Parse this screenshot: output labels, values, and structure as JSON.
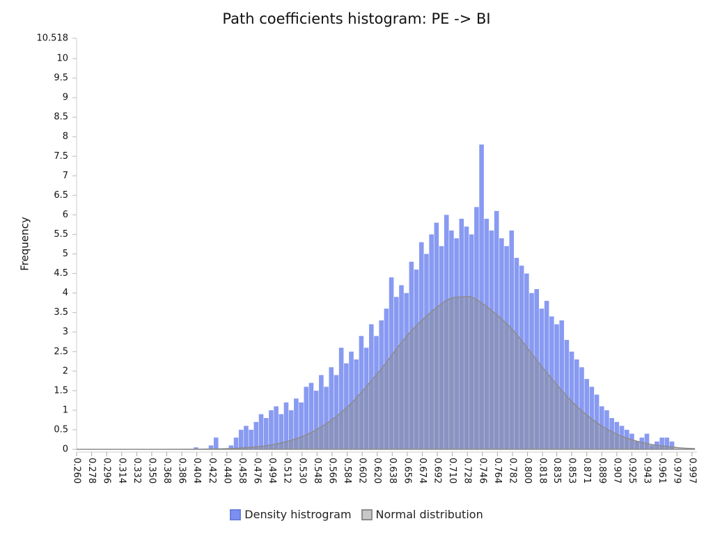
{
  "chart_data": {
    "type": "histogram",
    "title": "Path coefficients histogram: PE -> BI",
    "y_label": "Frequency",
    "name": "Density histrogram",
    "color": "#7b8ff0",
    "bins": [
      0.4,
      0.406,
      0.412,
      0.418,
      0.424,
      0.43,
      0.436,
      0.442,
      0.448,
      0.454,
      0.46,
      0.466,
      0.472,
      0.478,
      0.484,
      0.49,
      0.496,
      0.502,
      0.508,
      0.514,
      0.52,
      0.526,
      0.532,
      0.538,
      0.544,
      0.55,
      0.556,
      0.562,
      0.568,
      0.574,
      0.58,
      0.586,
      0.592,
      0.598,
      0.604,
      0.61,
      0.616,
      0.622,
      0.628,
      0.634,
      0.64,
      0.646,
      0.652,
      0.658,
      0.664,
      0.67,
      0.676,
      0.682,
      0.688,
      0.694,
      0.7,
      0.706,
      0.712,
      0.718,
      0.724,
      0.73,
      0.736,
      0.742,
      0.748,
      0.754,
      0.76,
      0.766,
      0.772,
      0.778,
      0.784,
      0.79,
      0.796,
      0.802,
      0.808,
      0.814,
      0.82,
      0.826,
      0.832,
      0.838,
      0.844,
      0.85,
      0.856,
      0.862,
      0.868,
      0.874,
      0.88,
      0.886,
      0.892,
      0.898,
      0.904,
      0.91,
      0.916,
      0.922,
      0.928,
      0.934,
      0.94,
      0.946,
      0.952,
      0.958,
      0.964,
      0.97,
      0.976,
      0.982
    ],
    "values": [
      0.05,
      0,
      0,
      0.1,
      0.3,
      0,
      0,
      0.1,
      0.3,
      0.5,
      0.6,
      0.5,
      0.7,
      0.9,
      0.8,
      1.0,
      1.1,
      0.9,
      1.2,
      1.0,
      1.3,
      1.2,
      1.6,
      1.7,
      1.5,
      1.9,
      1.6,
      2.1,
      1.9,
      2.6,
      2.2,
      2.5,
      2.3,
      2.9,
      2.6,
      3.2,
      2.9,
      3.3,
      3.6,
      4.4,
      3.9,
      4.2,
      4.0,
      4.8,
      4.6,
      5.3,
      5.0,
      5.5,
      5.8,
      5.2,
      6.0,
      5.6,
      5.4,
      5.9,
      5.7,
      5.5,
      6.2,
      7.8,
      5.9,
      5.6,
      6.1,
      5.4,
      5.2,
      5.6,
      4.9,
      4.7,
      4.5,
      4.0,
      4.1,
      3.6,
      3.8,
      3.4,
      3.2,
      3.3,
      2.8,
      2.5,
      2.3,
      2.1,
      1.8,
      1.6,
      1.4,
      1.1,
      1.0,
      0.8,
      0.7,
      0.6,
      0.5,
      0.4,
      0.2,
      0.3,
      0.4,
      0.1,
      0.2,
      0.3,
      0.3,
      0.2,
      0
    ],
    "curve": {
      "type": "area",
      "name": "Normal distribution",
      "color": "#8c8c8c",
      "x": [
        0.26,
        0.3,
        0.34,
        0.38,
        0.42,
        0.46,
        0.5,
        0.54,
        0.58,
        0.62,
        0.66,
        0.7,
        0.722,
        0.74,
        0.78,
        0.82,
        0.86,
        0.9,
        0.94,
        0.98,
        1.0
      ],
      "values": [
        0,
        0,
        0.0002,
        0.0014,
        0.008,
        0.038,
        0.14,
        0.42,
        1.0,
        1.93,
        3.01,
        3.77,
        3.9,
        3.82,
        3.11,
        2.04,
        1.08,
        0.46,
        0.16,
        0.043,
        0.021
      ]
    },
    "xlim": [
      0.26,
      1.003
    ],
    "xticks": [
      {
        "value": 0.26,
        "label": "0.260"
      },
      0.278,
      0.296,
      0.314,
      0.332,
      {
        "value": 0.35,
        "label": "0.350"
      },
      0.368,
      0.386,
      0.404,
      0.422,
      {
        "value": 0.44,
        "label": "0.440"
      },
      0.458,
      0.476,
      0.494,
      0.512,
      {
        "value": 0.53,
        "label": "0.530"
      },
      0.548,
      0.566,
      0.584,
      0.602,
      {
        "value": 0.62,
        "label": "0.620"
      },
      0.638,
      0.656,
      0.674,
      0.692,
      {
        "value": 0.71,
        "label": "0.710"
      },
      0.728,
      0.746,
      0.764,
      0.782,
      {
        "value": 0.8,
        "label": "0.800"
      },
      0.818,
      0.835,
      0.853,
      0.871,
      0.889,
      0.907,
      0.925,
      0.943,
      0.961,
      0.979,
      0.997
    ],
    "ylim": [
      0,
      10.518
    ],
    "yticks": [
      0,
      0.5,
      1,
      1.5,
      2,
      2.5,
      3,
      3.5,
      4,
      4.5,
      5,
      5.5,
      6,
      6.5,
      7,
      7.5,
      8,
      8.5,
      9,
      9.5,
      10,
      10.518
    ],
    "legend": "bottom"
  }
}
